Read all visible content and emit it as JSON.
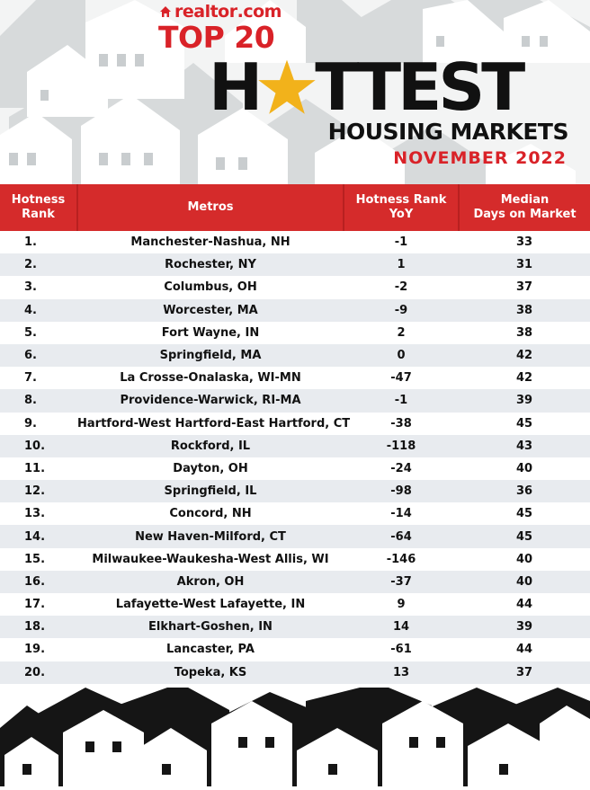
{
  "brand": {
    "name": "realtor",
    "suffix": ".com"
  },
  "headline": {
    "top": "TOP 20",
    "first_letter": "H",
    "rest": "TTEST",
    "subtitle": "HOUSING MARKETS",
    "period": "NOVEMBER 2022"
  },
  "icons": {
    "brand": "house-icon",
    "title_letter": "star-icon"
  },
  "colors": {
    "accent": "#d52b2b",
    "text": "#111111",
    "stripe": "#e8ebef"
  },
  "table": {
    "headers": {
      "rank_line1": "Hotness",
      "rank_line2": "Rank",
      "metro": "Metros",
      "yoy_line1": "Hotness Rank",
      "yoy_line2": "YoY",
      "days_line1": "Median",
      "days_line2": "Days on Market"
    },
    "rows": [
      {
        "rank": "1.",
        "metro": "Manchester-Nashua, NH",
        "yoy": "-1",
        "days": "33"
      },
      {
        "rank": "2.",
        "metro": "Rochester, NY",
        "yoy": "1",
        "days": "31"
      },
      {
        "rank": "3.",
        "metro": "Columbus, OH",
        "yoy": "-2",
        "days": "37"
      },
      {
        "rank": "4.",
        "metro": "Worcester, MA",
        "yoy": "-9",
        "days": "38"
      },
      {
        "rank": "5.",
        "metro": "Fort Wayne, IN",
        "yoy": "2",
        "days": "38"
      },
      {
        "rank": "6.",
        "metro": "Springfield, MA",
        "yoy": "0",
        "days": "42"
      },
      {
        "rank": "7.",
        "metro": "La Crosse-Onalaska, WI-MN",
        "yoy": "-47",
        "days": "42"
      },
      {
        "rank": "8.",
        "metro": "Providence-Warwick, RI-MA",
        "yoy": "-1",
        "days": "39"
      },
      {
        "rank": "9.",
        "metro": "Hartford-West Hartford-East Hartford, CT",
        "yoy": "-38",
        "days": "45"
      },
      {
        "rank": "10.",
        "metro": "Rockford, IL",
        "yoy": "-118",
        "days": "43"
      },
      {
        "rank": "11.",
        "metro": "Dayton, OH",
        "yoy": "-24",
        "days": "40"
      },
      {
        "rank": "12.",
        "metro": "Springfield, IL",
        "yoy": "-98",
        "days": "36"
      },
      {
        "rank": "13.",
        "metro": "Concord, NH",
        "yoy": "-14",
        "days": "45"
      },
      {
        "rank": "14.",
        "metro": "New Haven-Milford, CT",
        "yoy": "-64",
        "days": "45"
      },
      {
        "rank": "15.",
        "metro": "Milwaukee-Waukesha-West Allis, WI",
        "yoy": "-146",
        "days": "40"
      },
      {
        "rank": "16.",
        "metro": "Akron, OH",
        "yoy": "-37",
        "days": "40"
      },
      {
        "rank": "17.",
        "metro": "Lafayette-West Lafayette, IN",
        "yoy": "9",
        "days": "44"
      },
      {
        "rank": "18.",
        "metro": "Elkhart-Goshen, IN",
        "yoy": "14",
        "days": "39"
      },
      {
        "rank": "19.",
        "metro": "Lancaster, PA",
        "yoy": "-61",
        "days": "44"
      },
      {
        "rank": "20.",
        "metro": "Topeka, KS",
        "yoy": "13",
        "days": "37"
      }
    ]
  }
}
